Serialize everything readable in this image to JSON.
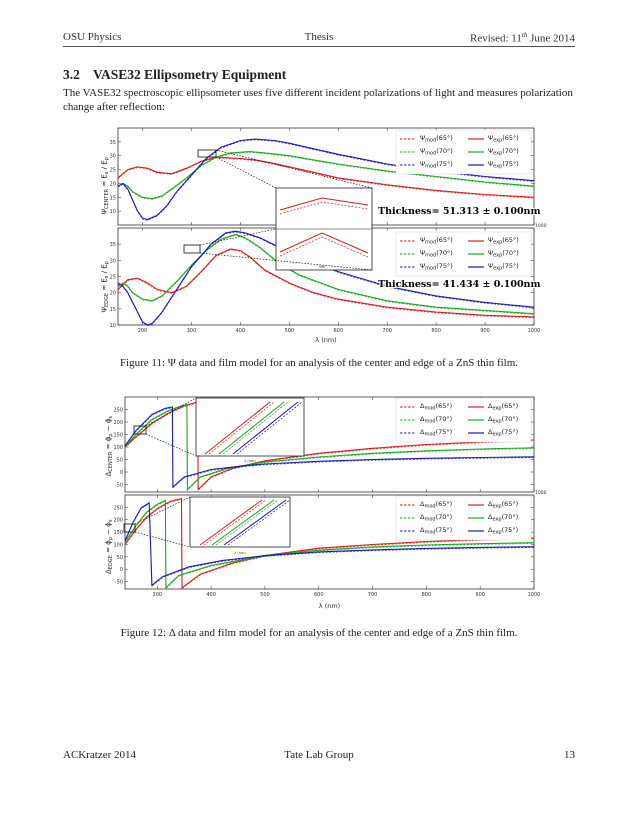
{
  "header": {
    "left": "OSU Physics",
    "center": "Thesis",
    "right_prefix": "Revised: 11",
    "right_sup": "th",
    "right_suffix": " June 2014"
  },
  "section": {
    "number": "3.2",
    "title": "VASE32 Ellipsometry Equipment"
  },
  "intro": "The VASE32 spectroscopic ellipsometer uses five different incident polarizations of light and measures polarization change after reflection:",
  "figure11": {
    "caption": "Figure 11: Ψ data and film model for an analysis of the center and edge of a ZnS thin film.",
    "top_ylabel": "Ψ_CENTER = E_s / E_p",
    "bottom_ylabel": "Ψ_EDGE = E_s / E_p",
    "xlabel": "λ (nm)",
    "thickness_top": "Thickness= 51.313 ± 0.100nm",
    "thickness_bottom": "Thickness= 41.434 ± 0.100nm",
    "legend_model": [
      "Ψ_mod(65°)",
      "Ψ_mod(70°)",
      "Ψ_mod(75°)"
    ],
    "legend_exp": [
      "Ψ_exp(65°)",
      "Ψ_exp(70°)",
      "Ψ_exp(75°)"
    ],
    "inset_xtick": "390",
    "chart_data": {
      "type": "line",
      "xlim": [
        150,
        1000
      ],
      "top_ylim": [
        5,
        40
      ],
      "bottom_ylim": [
        10,
        40
      ],
      "x_ticks": [
        200,
        300,
        400,
        500,
        600,
        700,
        800,
        900,
        1000
      ],
      "top_y_ticks": [
        10,
        15,
        20,
        25,
        30,
        35
      ],
      "bottom_y_ticks": [
        10,
        15,
        20,
        25,
        30,
        35
      ],
      "right_edge_tick": "1000",
      "colors": [
        "#d42020",
        "#1fa81f",
        "#1c1cb0"
      ],
      "top_series": [
        {
          "x": [
            150,
            170,
            190,
            210,
            230,
            260,
            290,
            320,
            350,
            380,
            400,
            430,
            460,
            500,
            550,
            600,
            700,
            800,
            900,
            1000
          ],
          "y": [
            22,
            25,
            26,
            25.5,
            24,
            23.5,
            25.5,
            28,
            29.5,
            29.2,
            29,
            28.5,
            27.5,
            26,
            24,
            22,
            19.5,
            17.5,
            16,
            15
          ]
        },
        {
          "x": [
            150,
            160,
            170,
            180,
            200,
            220,
            240,
            260,
            290,
            320,
            350,
            380,
            420,
            450,
            500,
            550,
            600,
            700,
            800,
            900,
            1000
          ],
          "y": [
            19,
            20,
            19,
            17,
            15,
            14.5,
            15.5,
            18,
            22,
            26.5,
            29.5,
            31,
            31.5,
            31,
            30,
            28.5,
            27,
            24.5,
            22.5,
            20.5,
            19
          ]
        },
        {
          "x": [
            150,
            160,
            170,
            180,
            190,
            200,
            210,
            230,
            250,
            270,
            300,
            330,
            360,
            400,
            430,
            470,
            500,
            550,
            600,
            700,
            800,
            900,
            1000
          ],
          "y": [
            19,
            20,
            18,
            14,
            10,
            7.5,
            7,
            8.5,
            12,
            17,
            23,
            29,
            33,
            35.5,
            36,
            35.5,
            34.5,
            32.5,
            30.5,
            27,
            24.5,
            22.5,
            21
          ]
        }
      ],
      "bottom_series": [
        {
          "x": [
            150,
            170,
            190,
            210,
            230,
            260,
            290,
            320,
            350,
            380,
            400,
            420,
            450,
            500,
            550,
            600,
            700,
            800,
            900,
            1000
          ],
          "y": [
            21,
            24,
            24.5,
            23,
            21,
            20,
            22,
            26.5,
            31.5,
            33.5,
            33,
            31,
            27,
            23,
            20,
            18,
            15.5,
            14,
            13,
            12.5
          ]
        },
        {
          "x": [
            150,
            160,
            170,
            180,
            200,
            220,
            240,
            270,
            300,
            330,
            360,
            390,
            410,
            440,
            480,
            520,
            600,
            700,
            800,
            900,
            1000
          ],
          "y": [
            22,
            23,
            22,
            20,
            18,
            17.5,
            19,
            23.5,
            28.5,
            33,
            36.5,
            38,
            37,
            34,
            29,
            25.5,
            21,
            17.5,
            15.5,
            14.5,
            13.5
          ]
        },
        {
          "x": [
            150,
            160,
            170,
            180,
            190,
            200,
            210,
            220,
            240,
            270,
            300,
            340,
            370,
            390,
            410,
            440,
            480,
            520,
            600,
            700,
            800,
            900,
            1000
          ],
          "y": [
            23,
            22,
            20,
            17,
            14,
            11,
            10,
            10.5,
            14,
            21,
            28,
            35,
            38.5,
            39,
            38.5,
            37,
            34,
            31,
            26.5,
            22,
            19,
            17,
            15.5
          ]
        }
      ]
    }
  },
  "figure12": {
    "caption": "Figure 12: Δ data and film model for an analysis of the center and edge of a ZnS thin film.",
    "top_ylabel": "Δ_CENTER = ϕ_p − ϕ_s",
    "bottom_ylabel": "Δ_EDGE = ϕ_p − ϕ_s",
    "xlabel": "λ (nm)",
    "legend_model": [
      "Δ_mod(65°)",
      "Δ_mod(70°)",
      "Δ_mod(75°)"
    ],
    "legend_exp": [
      "Δ_exp(65°)",
      "Δ_exp(70°)",
      "Δ_exp(75°)"
    ],
    "inset_xlabel": "λ (nm)",
    "chart_data": {
      "type": "line",
      "xlim": [
        240,
        1000
      ],
      "ylim": [
        -80,
        300
      ],
      "x_ticks": [
        300,
        400,
        500,
        600,
        700,
        800,
        900,
        1000
      ],
      "y_ticks": [
        -50,
        0,
        50,
        100,
        150,
        200,
        250
      ],
      "right_edge_tick": "1000",
      "colors": [
        "#d42020",
        "#1fa81f",
        "#1c1cb0"
      ],
      "top_series": [
        {
          "x": [
            240,
            260,
            290,
            320,
            350,
            375,
            376,
            400,
            440,
            500,
            600,
            700,
            800,
            900,
            1000
          ],
          "y": [
            100,
            140,
            195,
            235,
            265,
            280,
            -70,
            -20,
            15,
            45,
            75,
            95,
            110,
            120,
            128
          ]
        },
        {
          "x": [
            240,
            260,
            290,
            320,
            345,
            355,
            356,
            380,
            430,
            500,
            600,
            700,
            800,
            900,
            1000
          ],
          "y": [
            100,
            150,
            210,
            245,
            265,
            270,
            -70,
            -20,
            15,
            40,
            60,
            75,
            85,
            92,
            97
          ]
        },
        {
          "x": [
            240,
            260,
            290,
            315,
            328,
            329,
            350,
            400,
            460,
            500,
            600,
            700,
            800,
            900,
            1000
          ],
          "y": [
            105,
            165,
            230,
            255,
            260,
            -60,
            -20,
            10,
            25,
            32,
            43,
            50,
            55,
            58,
            61
          ]
        }
      ],
      "bottom_series": [
        {
          "x": [
            240,
            260,
            280,
            300,
            325,
            345,
            346,
            380,
            440,
            500,
            600,
            700,
            800,
            900,
            1000
          ],
          "y": [
            100,
            160,
            210,
            245,
            275,
            285,
            -75,
            -20,
            25,
            55,
            85,
            100,
            112,
            120,
            126
          ]
        },
        {
          "x": [
            240,
            260,
            280,
            300,
            315,
            316,
            340,
            400,
            500,
            600,
            700,
            800,
            900,
            1000
          ],
          "y": [
            110,
            175,
            230,
            262,
            278,
            -75,
            -25,
            15,
            55,
            77,
            90,
            98,
            103,
            107
          ]
        },
        {
          "x": [
            240,
            255,
            270,
            285,
            290,
            310,
            360,
            420,
            500,
            600,
            700,
            800,
            900,
            1000
          ],
          "y": [
            115,
            190,
            248,
            268,
            -65,
            -30,
            10,
            35,
            55,
            70,
            78,
            84,
            88,
            91
          ]
        }
      ]
    }
  },
  "footer": {
    "left": "ACKratzer 2014",
    "center": "Tate Lab Group",
    "right": "13"
  }
}
